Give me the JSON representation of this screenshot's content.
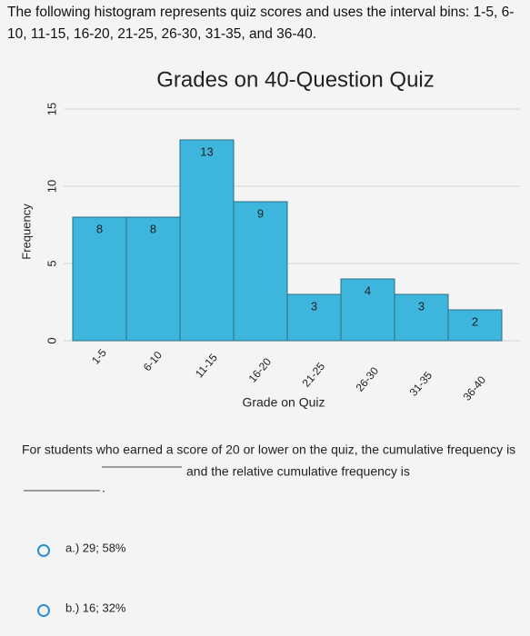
{
  "question": "The following histogram represents quiz scores and uses the interval bins: 1-5, 6-10, 11-15, 16-20, 21-25, 26-30, 31-35, and 36-40.",
  "chart_data": {
    "type": "bar",
    "title": "Grades on 40-Question Quiz",
    "x_label": "Grade on Quiz",
    "y_label": "Frequency",
    "categories": [
      "1-5",
      "6-10",
      "11-15",
      "16-20",
      "21-25",
      "26-30",
      "31-35",
      "36-40"
    ],
    "values": [
      8,
      8,
      13,
      9,
      3,
      4,
      3,
      2
    ],
    "color": "#3db5dc",
    "ylim": [
      0,
      15
    ],
    "yticks": [
      0,
      5,
      10,
      15
    ],
    "grid": true
  },
  "prompt": {
    "part1": "For students who earned a score of 20 or lower on the quiz, the cumulative frequency is",
    "part2": "and the relative cumulative frequency is",
    "end": "."
  },
  "options": [
    "a.) 29; 58%",
    "b.) 16; 32%"
  ]
}
